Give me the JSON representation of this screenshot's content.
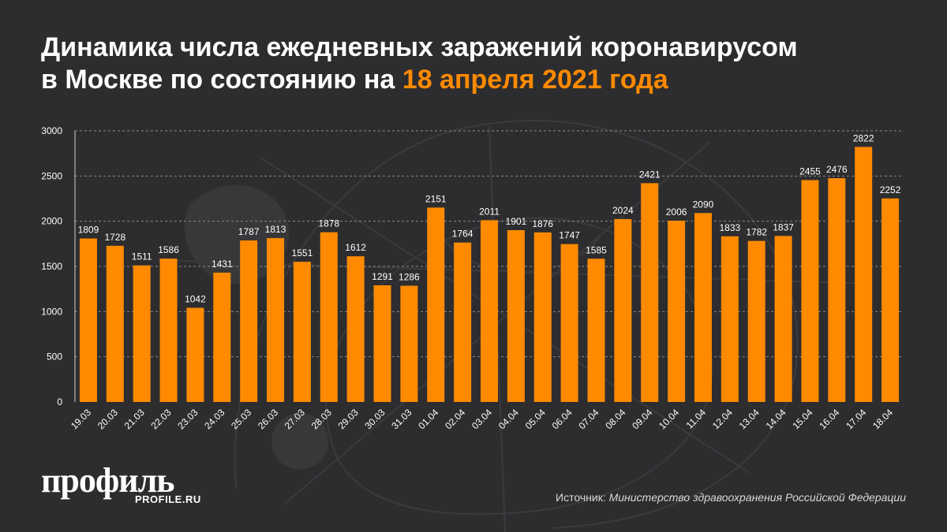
{
  "header": {
    "title_part1": "Динамика числа ежедневных заражений коронавирусом",
    "title_part2": "в Москве по состоянию на ",
    "title_date": "18 апреля 2021 года"
  },
  "footer": {
    "logo": "профиль",
    "logo_url": "PROFILE.RU",
    "source_label": "Источник: ",
    "source_value": "Министерство здравоохранения Российской Федерации"
  },
  "colors": {
    "background": "#2d2d2f",
    "bar": "#ff8a00",
    "accent": "#ff8a00",
    "text": "#ffffff"
  },
  "chart_data": {
    "type": "bar",
    "title": "Динамика числа ежедневных заражений коронавирусом в Москве по состоянию на 18 апреля 2021 года",
    "xlabel": "",
    "ylabel": "",
    "ylim": [
      0,
      3000
    ],
    "yticks": [
      0,
      500,
      1000,
      1500,
      2000,
      2500,
      3000
    ],
    "grid": true,
    "categories": [
      "19.03",
      "20.03",
      "21.03",
      "22.03",
      "23.03",
      "24.03",
      "25.03",
      "26.03",
      "27.03",
      "28.03",
      "29.03",
      "30.03",
      "31.03",
      "01.04",
      "02.04",
      "03.04",
      "04.04",
      "05.04",
      "06.04",
      "07.04",
      "08.04",
      "09.04",
      "10.04",
      "11.04",
      "12.04",
      "13.04",
      "14.04",
      "15.04",
      "16.04",
      "17.04",
      "18.04"
    ],
    "values": [
      1809,
      1728,
      1511,
      1586,
      1042,
      1431,
      1787,
      1813,
      1551,
      1878,
      1612,
      1291,
      1286,
      2151,
      1764,
      2011,
      1901,
      1876,
      1747,
      1585,
      2024,
      2421,
      2006,
      2090,
      1833,
      1782,
      1837,
      2455,
      2476,
      2822,
      2252
    ]
  }
}
